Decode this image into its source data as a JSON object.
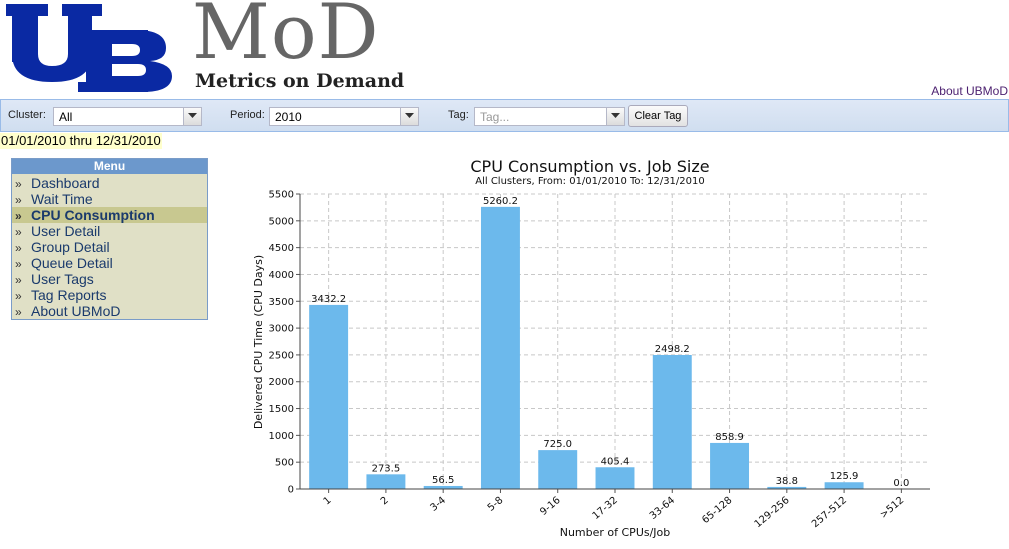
{
  "header": {
    "logo_letters": "UB",
    "logo_title": "MoD",
    "logo_subtitle": "Metrics on Demand",
    "about_link": "About UBMoD",
    "colors": {
      "ub_blue": "#0a29a3",
      "mod_gray": "#666666"
    }
  },
  "toolbar": {
    "cluster_label": "Cluster:",
    "cluster_value": "All",
    "period_label": "Period:",
    "period_value": "2010",
    "tag_label": "Tag:",
    "tag_placeholder": "Tag...",
    "clear_tag_label": "Clear Tag"
  },
  "date_range": "01/01/2010 thru 12/31/2010",
  "menu": {
    "title": "Menu",
    "items": [
      {
        "label": "Dashboard",
        "active": false
      },
      {
        "label": "Wait Time",
        "active": false
      },
      {
        "label": "CPU Consumption",
        "active": true
      },
      {
        "label": "User Detail",
        "active": false
      },
      {
        "label": "Group Detail",
        "active": false
      },
      {
        "label": "Queue Detail",
        "active": false
      },
      {
        "label": "User Tags",
        "active": false
      },
      {
        "label": "Tag Reports",
        "active": false
      },
      {
        "label": "About UBMoD",
        "active": false
      }
    ]
  },
  "chart_data": {
    "type": "bar",
    "title": "CPU Consumption vs. Job Size",
    "subtitle": "All Clusters, From: 01/01/2010 To: 12/31/2010",
    "xlabel": "Number of CPUs/Job",
    "ylabel": "Delivered CPU Time (CPU Days)",
    "categories": [
      "1",
      "2",
      "3-4",
      "5-8",
      "9-16",
      "17-32",
      "33-64",
      "65-128",
      "129-256",
      "257-512",
      ">512"
    ],
    "values": [
      3432.2,
      273.5,
      56.5,
      5260.2,
      725.0,
      405.4,
      2498.2,
      858.9,
      38.8,
      125.9,
      0.0
    ],
    "data_labels": [
      "3432.2",
      "273.5",
      "56.5",
      "5260.2",
      "725.0",
      "405.4",
      "2498.2",
      "858.9",
      "38.8",
      "125.9",
      "0.0"
    ],
    "ylim": [
      0,
      5500
    ],
    "yticks": [
      "0",
      "500",
      "1000",
      "1500",
      "2000",
      "2500",
      "3000",
      "3500",
      "4000",
      "4500",
      "5000",
      "5500"
    ],
    "grid": true,
    "bar_color": "#6cb9ec"
  }
}
